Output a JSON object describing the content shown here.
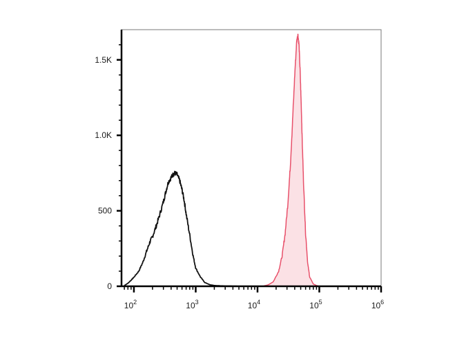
{
  "chart_data": {
    "type": "area",
    "x_scale": "log",
    "xlim": [
      63,
      1000000
    ],
    "ylim": [
      0,
      1700
    ],
    "y_ticks": [
      {
        "value": 0,
        "label": "0"
      },
      {
        "value": 500,
        "label": "500"
      },
      {
        "value": 1000,
        "label": "1.0K"
      },
      {
        "value": 1500,
        "label": "1.5K"
      }
    ],
    "x_ticks": [
      {
        "value": 100,
        "base": "10",
        "exp": "2"
      },
      {
        "value": 1000,
        "base": "10",
        "exp": "3"
      },
      {
        "value": 10000,
        "base": "10",
        "exp": "4"
      },
      {
        "value": 100000,
        "base": "10",
        "exp": "5"
      },
      {
        "value": 1000000,
        "base": "10",
        "exp": "6"
      }
    ],
    "grid": false,
    "series": [
      {
        "color": "#111111",
        "fill": "none",
        "x": [
          70,
          80,
          90,
          100,
          120,
          140,
          160,
          180,
          200,
          230,
          260,
          300,
          330,
          360,
          400,
          430,
          460,
          500,
          550,
          600,
          650,
          700,
          800,
          900,
          1000,
          1200,
          1400,
          1700,
          2000,
          2500,
          3000,
          4000,
          6000
        ],
        "y": [
          5,
          20,
          40,
          60,
          100,
          160,
          230,
          290,
          330,
          400,
          470,
          560,
          630,
          690,
          720,
          740,
          750,
          740,
          700,
          640,
          570,
          480,
          340,
          210,
          120,
          60,
          25,
          10,
          5,
          3,
          2,
          1,
          0
        ]
      },
      {
        "color": "#e8506a",
        "fill": "#fbe1e5",
        "x": [
          12000,
          15000,
          18000,
          22000,
          25000,
          28000,
          31000,
          34000,
          37000,
          40000,
          43000,
          45000,
          47000,
          49000,
          51000,
          53000,
          56000,
          60000,
          65000,
          70000,
          80000,
          90000,
          100000
        ],
        "y": [
          0,
          10,
          30,
          100,
          200,
          350,
          550,
          800,
          1100,
          1400,
          1620,
          1670,
          1600,
          1420,
          1200,
          950,
          650,
          350,
          150,
          60,
          15,
          5,
          0
        ]
      }
    ]
  }
}
